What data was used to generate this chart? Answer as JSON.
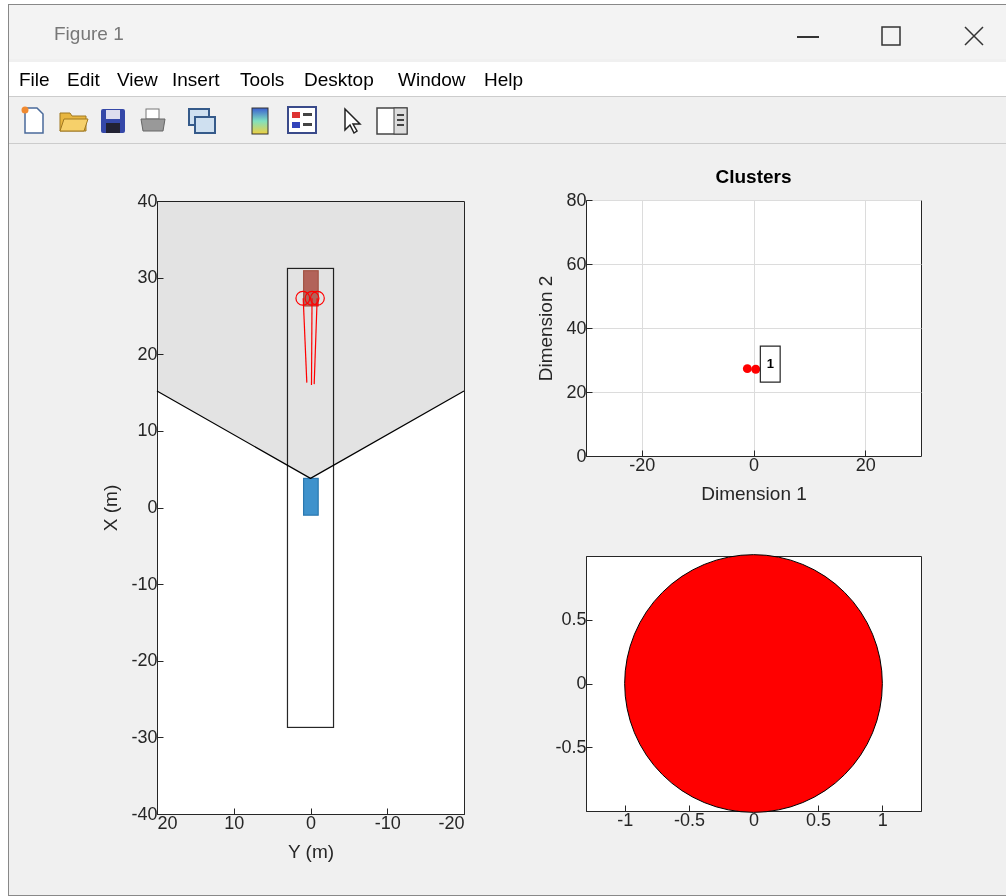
{
  "chart_data": [
    {
      "type": "other",
      "title": "Figure 1",
      "annotations": [
        "File",
        "Edit",
        "View",
        "Insert",
        "Tools",
        "Desktop",
        "Window",
        "Help"
      ]
    },
    {
      "type": "area",
      "xlabel": "Y (m)",
      "ylabel": "X (m)",
      "xlim": [
        20,
        -20
      ],
      "xticks": [
        20,
        10,
        0,
        -10,
        -20
      ],
      "ylim": [
        -40,
        40
      ],
      "yticks": [
        -40,
        -30,
        -20,
        -10,
        0,
        10,
        20,
        30,
        40
      ],
      "series": [
        {
          "type": "line",
          "color": "#000000",
          "x": [
            20,
            0,
            -20
          ],
          "values": [
            15.2,
            3.8,
            15.2
          ],
          "lower": [
            15.2,
            3.8,
            15.2
          ],
          "upper": [
            40,
            40,
            40
          ]
        },
        {
          "type": "line",
          "color": "#ff0000",
          "x": [
            0.95,
            0.48
          ],
          "values": [
            27.3,
            16.3
          ]
        },
        {
          "type": "line",
          "color": "#ff0000",
          "x": [
            -0.2,
            -0.13
          ],
          "values": [
            27.3,
            16.0
          ]
        },
        {
          "type": "line",
          "color": "#ff0000",
          "x": [
            -0.87,
            -0.48
          ],
          "values": [
            27.3,
            16.1
          ]
        },
        {
          "type": "scatter",
          "color": "#ff0000",
          "marker": "circle",
          "x": [
            1.0,
            -0.2,
            -0.9
          ],
          "values": [
            27.3,
            27.3,
            27.3
          ]
        }
      ]
    },
    {
      "type": "scatter",
      "title": "Clusters",
      "xlabel": "Dimension 1",
      "ylabel": "Dimension 2",
      "xlim": [
        -30,
        30
      ],
      "xticks": [
        -20,
        0,
        20
      ],
      "ylim": [
        0,
        80
      ],
      "yticks": [
        0,
        20,
        40,
        60,
        80
      ],
      "grid": true,
      "marker": "circle",
      "color": "#ff0000",
      "x": [
        -1.1,
        0.4
      ],
      "values": [
        27.3,
        27.1
      ],
      "annotations": [
        {
          "text": "1",
          "x": 3.0,
          "y": 28.7
        }
      ]
    },
    {
      "type": "bubble",
      "x": [
        0
      ],
      "values": [
        0
      ],
      "sizes": [
        1
      ],
      "color": "#ff0000",
      "xlim": [
        -1.3,
        1.3
      ],
      "xticks": [
        -1,
        -0.5,
        0,
        0.5,
        1
      ],
      "ylim": [
        -1,
        1
      ],
      "yticks": [
        -0.5,
        0,
        0.5
      ]
    }
  ]
}
